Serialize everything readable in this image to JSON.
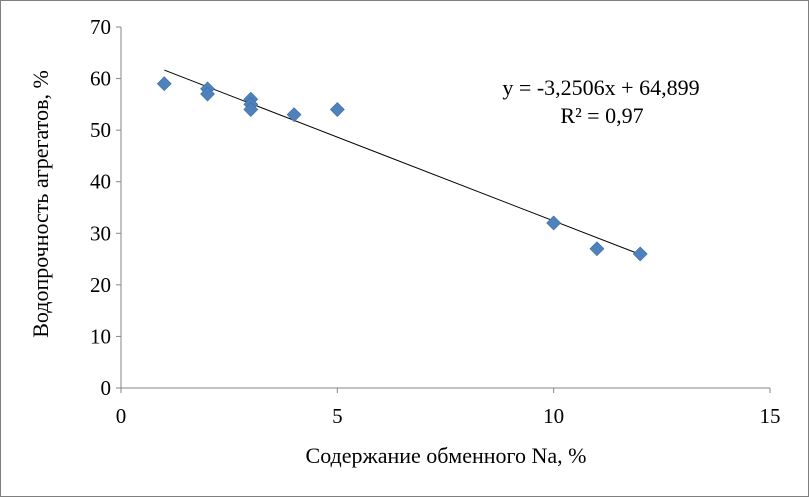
{
  "chart_data": {
    "type": "scatter",
    "title": "",
    "xlabel": "Содержание обменного Na, %",
    "ylabel": "Водопрочность  агрегатов, %",
    "xlim": [
      0,
      15
    ],
    "ylim": [
      0,
      70
    ],
    "x_ticks": [
      0,
      5,
      10,
      15
    ],
    "y_ticks": [
      0,
      10,
      20,
      30,
      40,
      50,
      60,
      70
    ],
    "grid": false,
    "legend": "none",
    "marker_color": "#4f81bd",
    "trendline_color": "#000000",
    "series": [
      {
        "x": [
          1,
          2,
          2,
          3,
          3,
          3,
          4,
          5,
          10,
          11,
          12
        ],
        "y": [
          59,
          58,
          57,
          56,
          55,
          54,
          53,
          54,
          32,
          27,
          26
        ]
      }
    ],
    "trendline": {
      "slope": -3.2506,
      "intercept": 64.899,
      "x_range": [
        1,
        12
      ],
      "equation_text": "y = -3,2506x  + 64,899",
      "r2_text": "R² = 0,97"
    }
  }
}
